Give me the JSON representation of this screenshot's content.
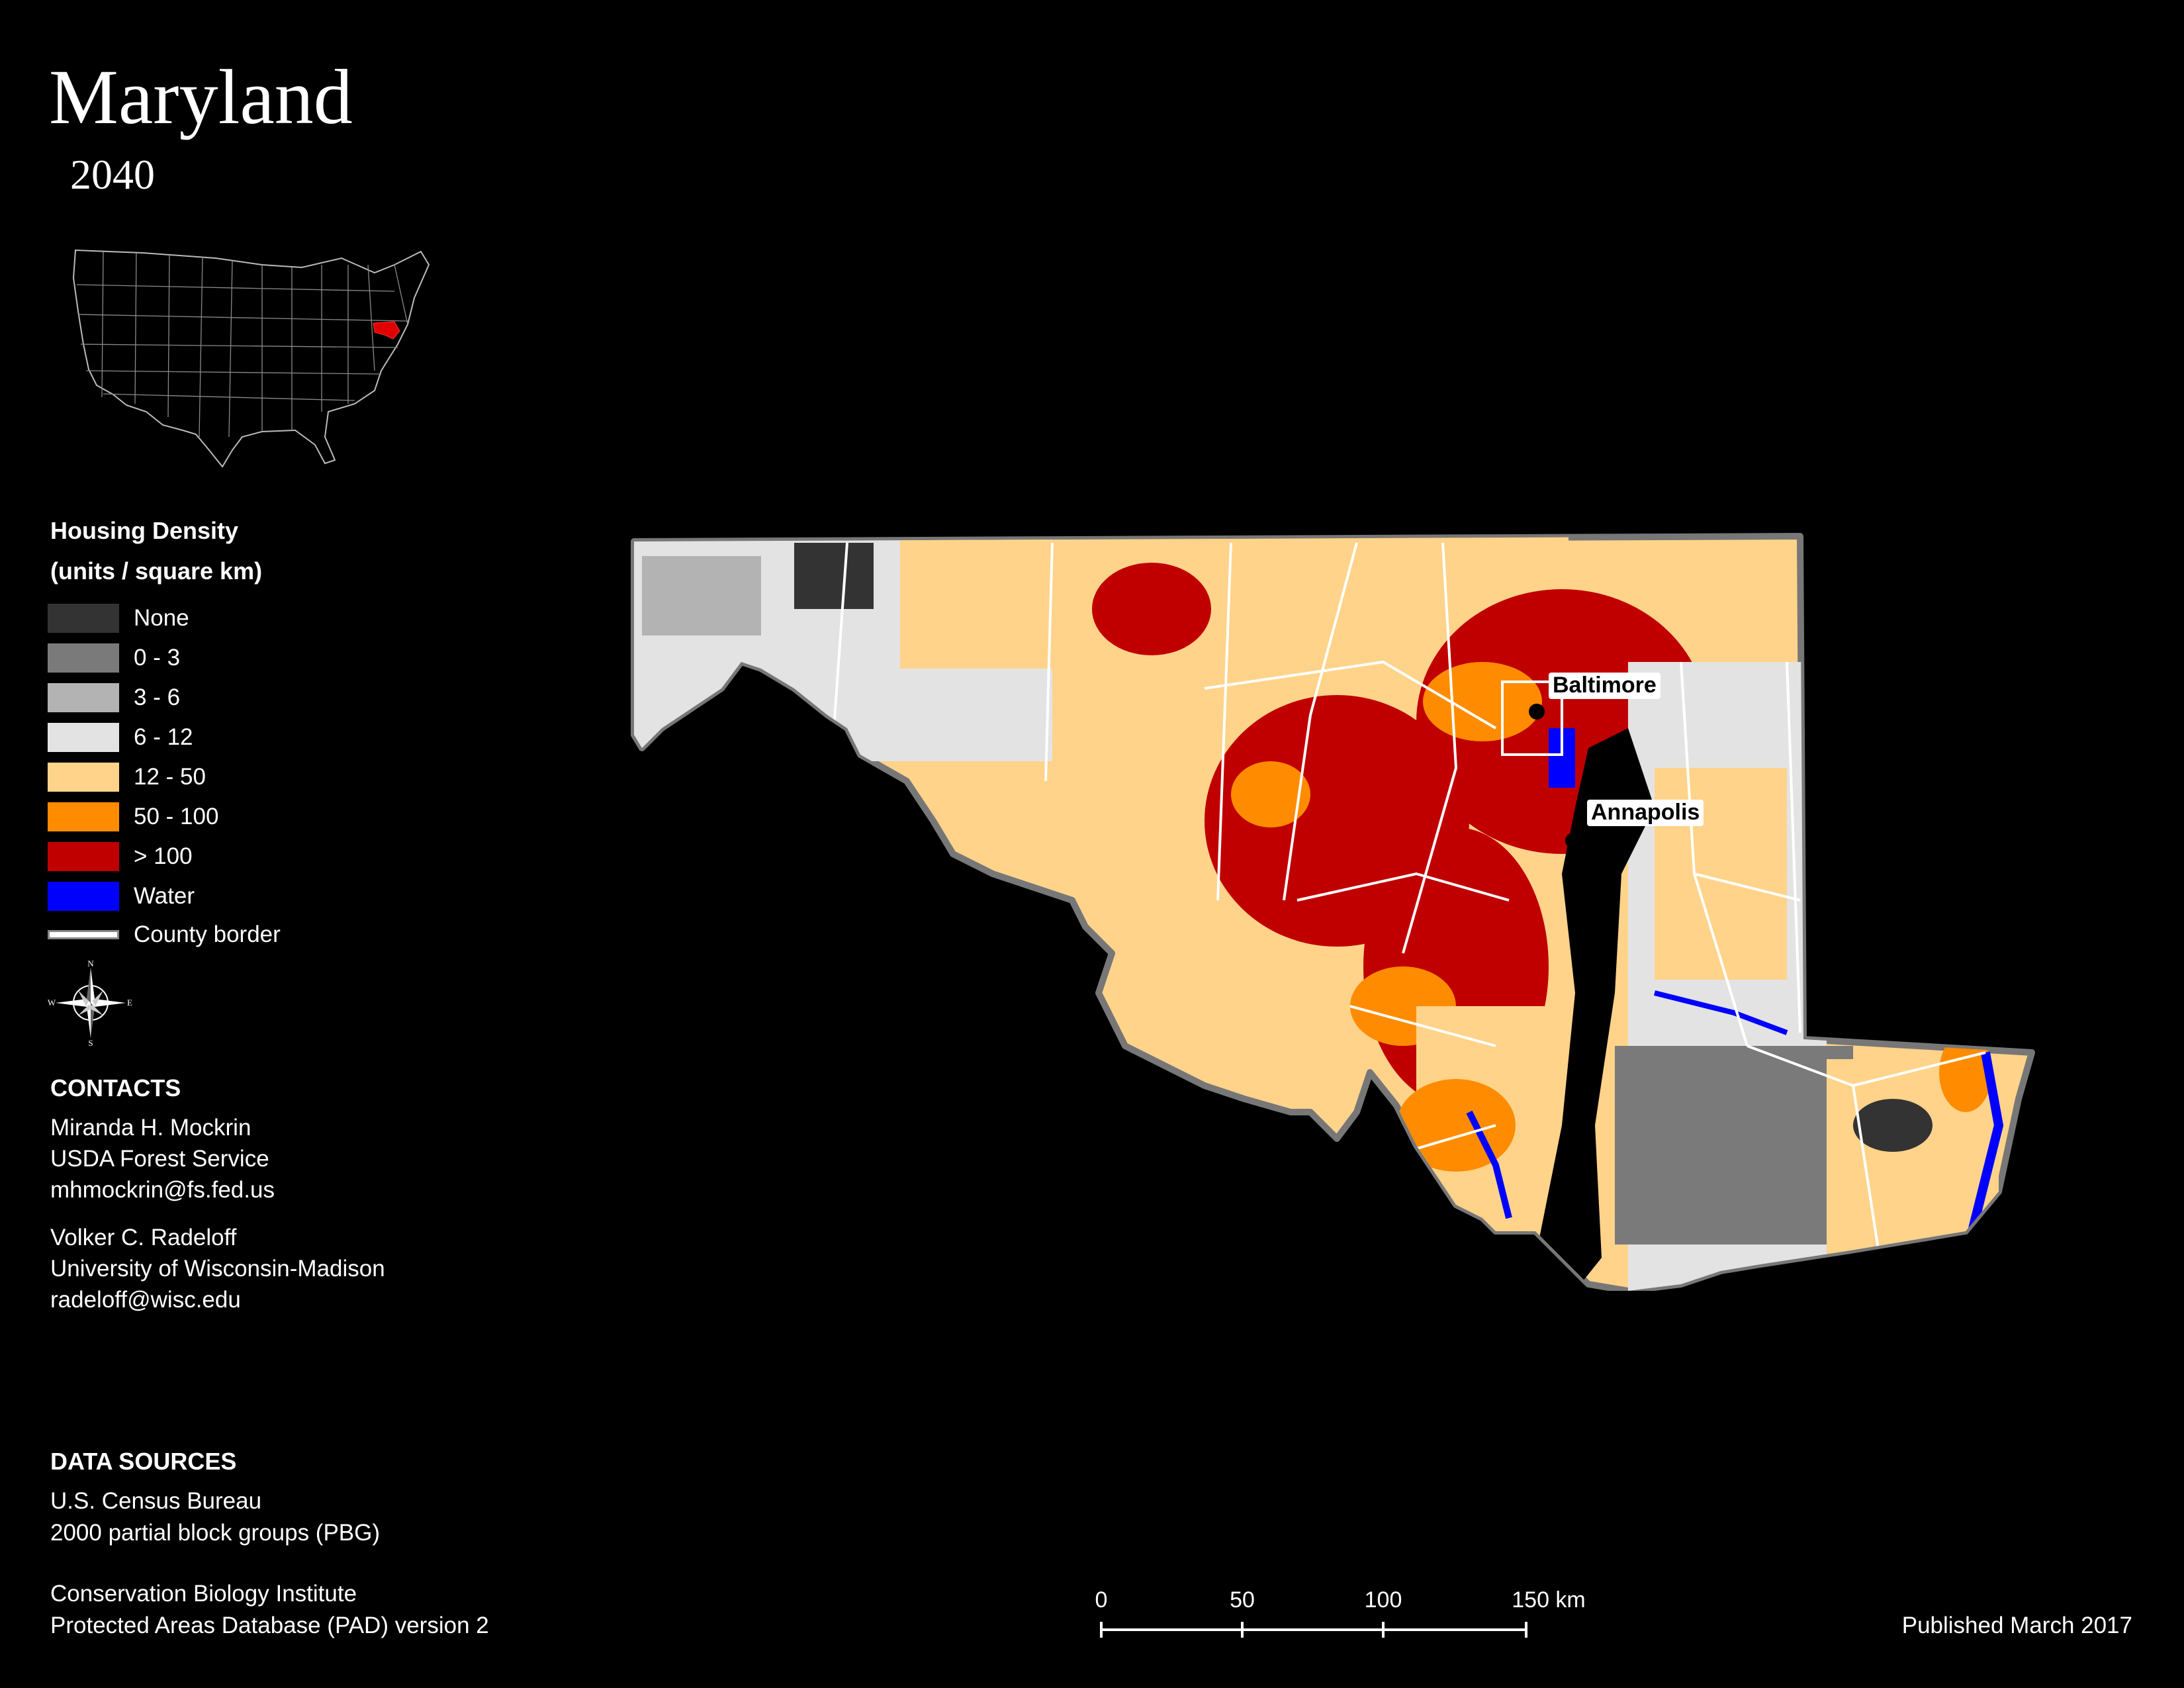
{
  "map": {
    "title": "Maryland",
    "year": "2040",
    "cities": [
      {
        "name": "Baltimore"
      },
      {
        "name": "Annapolis"
      }
    ]
  },
  "legend": {
    "title_line1": "Housing Density",
    "title_line2": "(units / square km)",
    "items": [
      {
        "label": "None",
        "color": "#333333"
      },
      {
        "label": "0 - 3",
        "color": "#7a7a7a"
      },
      {
        "label": "3 - 6",
        "color": "#b3b3b3"
      },
      {
        "label": "6 - 12",
        "color": "#e3e3e3"
      },
      {
        "label": "12 - 50",
        "color": "#ffd38a"
      },
      {
        "label": "50 - 100",
        "color": "#ff8c00"
      },
      {
        "label": "> 100",
        "color": "#c00000"
      },
      {
        "label": "Water",
        "color": "#0000ff"
      }
    ],
    "county_border_label": "County border",
    "compass": {
      "n": "N",
      "s": "S",
      "e": "E",
      "w": "W"
    }
  },
  "contacts": {
    "heading": "CONTACTS",
    "people": [
      {
        "name": "Miranda H. Mockrin",
        "org": "USDA Forest Service",
        "email": "mhmockrin@fs.fed.us"
      },
      {
        "name": "Volker C. Radeloff",
        "org": "University of Wisconsin-Madison",
        "email": "radeloff@wisc.edu"
      }
    ]
  },
  "data_sources": {
    "heading": "DATA SOURCES",
    "lines": [
      "U.S. Census Bureau",
      "2000 partial block groups (PBG)",
      "Conservation Biology Institute",
      "Protected Areas Database (PAD) version 2"
    ]
  },
  "scale_bar": {
    "ticks": [
      "0",
      "50",
      "100",
      "150 km"
    ]
  },
  "published": "Published March 2017"
}
